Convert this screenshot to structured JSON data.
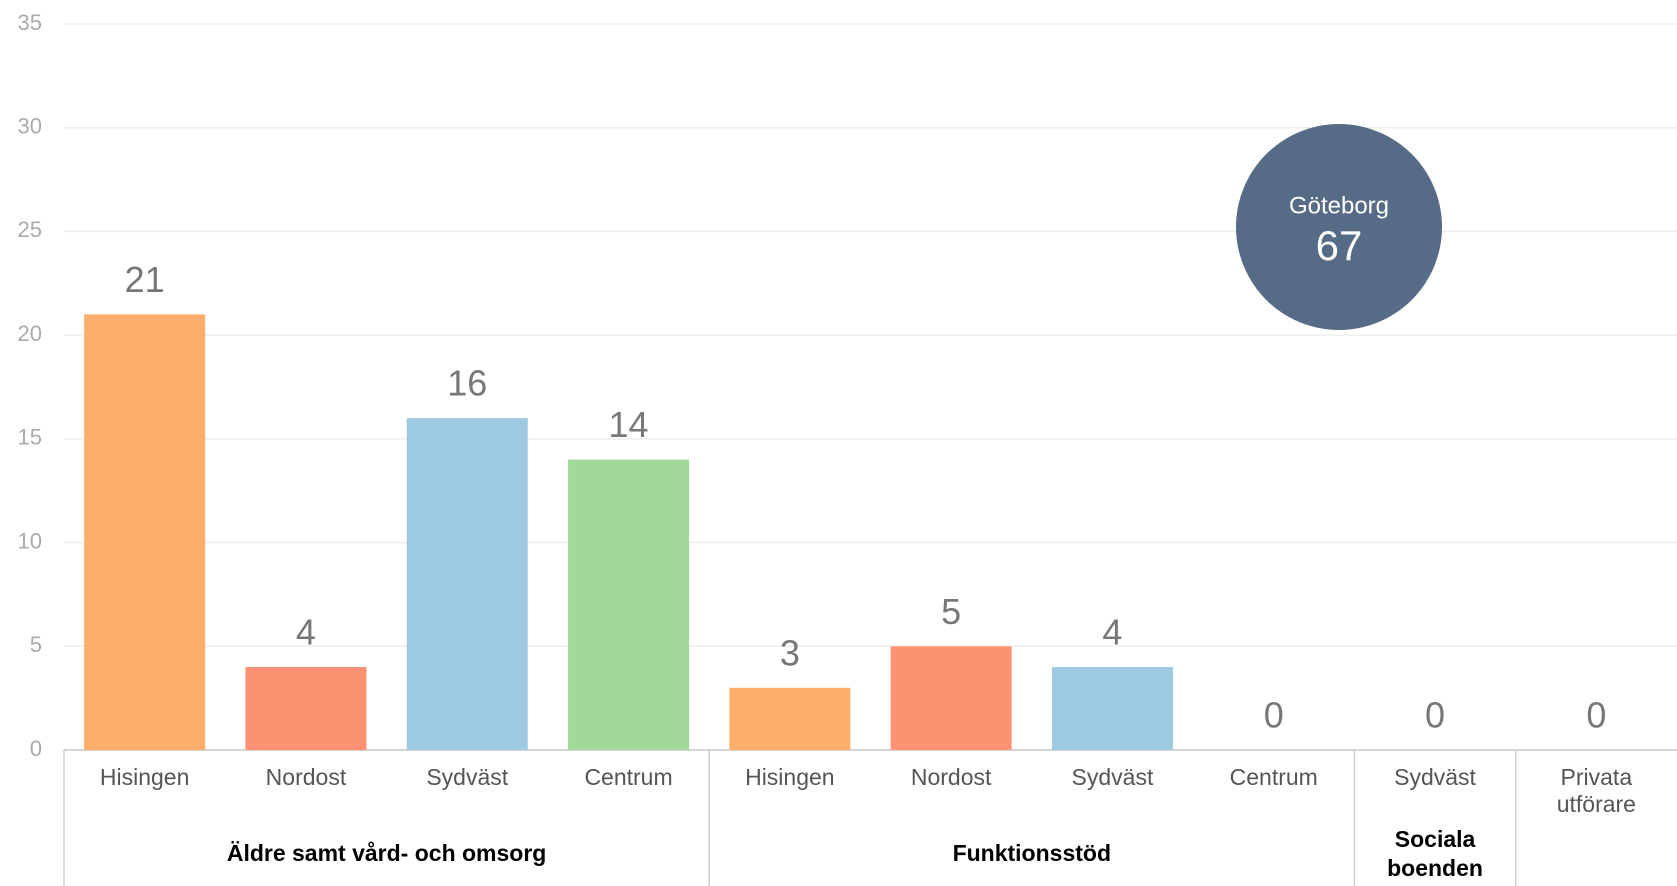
{
  "chart_data": {
    "type": "bar",
    "groups": [
      {
        "name": "Äldre samt vård- och omsorg",
        "categories": [
          "Hisingen",
          "Nordost",
          "Sydväst",
          "Centrum"
        ]
      },
      {
        "name": "Funktionsstöd",
        "categories": [
          "Hisingen",
          "Nordost",
          "Sydväst",
          "Centrum"
        ]
      },
      {
        "name": "Sociala boenden",
        "categories": [
          "Sydväst"
        ]
      },
      {
        "name": null,
        "categories": [
          "Privata utförare"
        ]
      }
    ],
    "values": [
      21,
      4,
      16,
      14,
      3,
      5,
      4,
      0,
      0,
      0
    ],
    "colors": [
      "#fdae6b",
      "#fc9272",
      "#9ecae1",
      "#a1d99b",
      "#fdae6b",
      "#fc9272",
      "#9ecae1",
      "#a1d99b",
      "#9ecae1",
      "#9ecae1"
    ],
    "ylim": [
      0,
      35
    ],
    "yticks": [
      0,
      5,
      10,
      15,
      20,
      25,
      30,
      35
    ],
    "grid": true,
    "annotation": {
      "label": "Göteborg",
      "value": 67,
      "color": "#566b86"
    }
  }
}
